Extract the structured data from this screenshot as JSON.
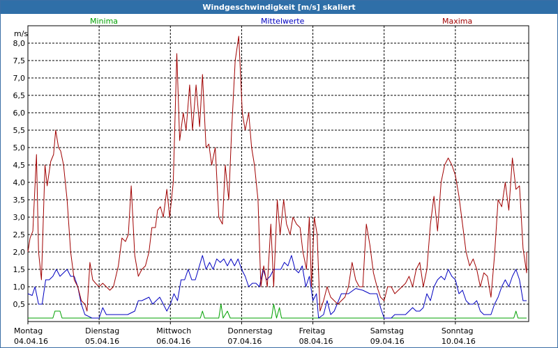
{
  "chart_data": {
    "type": "line",
    "title": "Windgeschwindigkeit [m/s] skaliert",
    "ylabel": "m/s",
    "ylim": [
      0,
      8.5
    ],
    "yticks": [
      "0,5",
      "1,0",
      "1,5",
      "2,0",
      "2,5",
      "3,0",
      "3,5",
      "4,0",
      "4,5",
      "5,0",
      "5,5",
      "6,0",
      "6,5",
      "7,0",
      "7,5",
      "8,0"
    ],
    "yvalues": [
      0.5,
      1.0,
      1.5,
      2.0,
      2.5,
      3.0,
      3.5,
      4.0,
      4.5,
      5.0,
      5.5,
      6.0,
      6.5,
      7.0,
      7.5,
      8.0
    ],
    "xlim": [
      0,
      7
    ],
    "days": [
      {
        "name": "Montag",
        "date": "04.04.16"
      },
      {
        "name": "Dienstag",
        "date": "05.04.16"
      },
      {
        "name": "Mittwoch",
        "date": "06.04.16"
      },
      {
        "name": "Donnerstag",
        "date": "07.04.16"
      },
      {
        "name": "Freitag",
        "date": "08.04.16"
      },
      {
        "name": "Samstag",
        "date": "09.04.16"
      },
      {
        "name": "Sonntag",
        "date": "10.04.16"
      }
    ],
    "legend_placement": "top",
    "grid": true,
    "series": [
      {
        "name": "Minima",
        "color": "#00a000",
        "points": [
          [
            0,
            0.1
          ],
          [
            0.35,
            0.1
          ],
          [
            0.38,
            0.3
          ],
          [
            0.45,
            0.3
          ],
          [
            0.48,
            0.1
          ],
          [
            2.42,
            0.1
          ],
          [
            2.45,
            0.3
          ],
          [
            2.48,
            0.1
          ],
          [
            2.68,
            0.1
          ],
          [
            2.71,
            0.5
          ],
          [
            2.74,
            0.1
          ],
          [
            2.8,
            0.3
          ],
          [
            2.84,
            0.1
          ],
          [
            3.42,
            0.1
          ],
          [
            3.45,
            0.5
          ],
          [
            3.49,
            0.1
          ],
          [
            3.53,
            0.4
          ],
          [
            3.56,
            0.1
          ],
          [
            6.82,
            0.1
          ],
          [
            6.85,
            0.3
          ],
          [
            6.88,
            0.1
          ],
          [
            7,
            0.1
          ]
        ]
      },
      {
        "name": "Mittelwerte",
        "color": "#0000c0",
        "points": [
          [
            0,
            0.8
          ],
          [
            0.06,
            0.75
          ],
          [
            0.1,
            1.0
          ],
          [
            0.15,
            0.5
          ],
          [
            0.2,
            0.5
          ],
          [
            0.25,
            1.2
          ],
          [
            0.3,
            1.2
          ],
          [
            0.35,
            1.3
          ],
          [
            0.4,
            1.5
          ],
          [
            0.45,
            1.3
          ],
          [
            0.5,
            1.4
          ],
          [
            0.55,
            1.5
          ],
          [
            0.6,
            1.3
          ],
          [
            0.65,
            1.3
          ],
          [
            0.7,
            1.0
          ],
          [
            0.75,
            0.5
          ],
          [
            0.8,
            0.2
          ],
          [
            0.9,
            0.1
          ],
          [
            1.0,
            0.1
          ],
          [
            1.05,
            0.4
          ],
          [
            1.1,
            0.2
          ],
          [
            1.2,
            0.2
          ],
          [
            1.3,
            0.2
          ],
          [
            1.4,
            0.2
          ],
          [
            1.5,
            0.3
          ],
          [
            1.55,
            0.6
          ],
          [
            1.6,
            0.6
          ],
          [
            1.7,
            0.7
          ],
          [
            1.75,
            0.5
          ],
          [
            1.8,
            0.6
          ],
          [
            1.85,
            0.7
          ],
          [
            1.9,
            0.5
          ],
          [
            1.95,
            0.3
          ],
          [
            2.0,
            0.5
          ],
          [
            2.05,
            0.8
          ],
          [
            2.1,
            0.6
          ],
          [
            2.15,
            1.2
          ],
          [
            2.2,
            1.2
          ],
          [
            2.25,
            1.5
          ],
          [
            2.3,
            1.2
          ],
          [
            2.35,
            1.2
          ],
          [
            2.45,
            1.9
          ],
          [
            2.5,
            1.5
          ],
          [
            2.55,
            1.7
          ],
          [
            2.6,
            1.5
          ],
          [
            2.65,
            1.8
          ],
          [
            2.7,
            1.7
          ],
          [
            2.75,
            1.8
          ],
          [
            2.8,
            1.6
          ],
          [
            2.85,
            1.8
          ],
          [
            2.9,
            1.6
          ],
          [
            2.95,
            1.8
          ],
          [
            3.0,
            1.5
          ],
          [
            3.05,
            1.3
          ],
          [
            3.1,
            1.0
          ],
          [
            3.15,
            1.1
          ],
          [
            3.2,
            1.1
          ],
          [
            3.25,
            1.0
          ],
          [
            3.3,
            1.5
          ],
          [
            3.35,
            1.2
          ],
          [
            3.4,
            1.3
          ],
          [
            3.45,
            1.5
          ],
          [
            3.5,
            1.5
          ],
          [
            3.55,
            1.5
          ],
          [
            3.6,
            1.7
          ],
          [
            3.65,
            1.6
          ],
          [
            3.7,
            1.9
          ],
          [
            3.75,
            1.5
          ],
          [
            3.8,
            1.4
          ],
          [
            3.85,
            1.6
          ],
          [
            3.9,
            1.0
          ],
          [
            3.95,
            1.3
          ],
          [
            4.0,
            0.6
          ],
          [
            4.05,
            0.8
          ],
          [
            4.08,
            0.1
          ],
          [
            4.15,
            0.2
          ],
          [
            4.2,
            0.6
          ],
          [
            4.25,
            0.2
          ],
          [
            4.3,
            0.3
          ],
          [
            4.4,
            0.8
          ],
          [
            4.5,
            0.8
          ],
          [
            4.6,
            0.95
          ],
          [
            4.7,
            0.9
          ],
          [
            4.8,
            0.8
          ],
          [
            4.9,
            0.8
          ],
          [
            4.95,
            0.4
          ],
          [
            5.0,
            0.1
          ],
          [
            5.1,
            0.1
          ],
          [
            5.15,
            0.2
          ],
          [
            5.2,
            0.2
          ],
          [
            5.3,
            0.2
          ],
          [
            5.4,
            0.4
          ],
          [
            5.45,
            0.3
          ],
          [
            5.5,
            0.3
          ],
          [
            5.55,
            0.4
          ],
          [
            5.6,
            0.8
          ],
          [
            5.65,
            0.6
          ],
          [
            5.7,
            1.0
          ],
          [
            5.75,
            1.2
          ],
          [
            5.8,
            1.3
          ],
          [
            5.85,
            1.2
          ],
          [
            5.9,
            1.5
          ],
          [
            5.95,
            1.3
          ],
          [
            6.0,
            1.2
          ],
          [
            6.05,
            0.8
          ],
          [
            6.1,
            0.9
          ],
          [
            6.15,
            0.6
          ],
          [
            6.2,
            0.5
          ],
          [
            6.25,
            0.5
          ],
          [
            6.3,
            0.6
          ],
          [
            6.35,
            0.3
          ],
          [
            6.4,
            0.2
          ],
          [
            6.5,
            0.2
          ],
          [
            6.55,
            0.5
          ],
          [
            6.6,
            0.7
          ],
          [
            6.65,
            1.0
          ],
          [
            6.7,
            1.2
          ],
          [
            6.75,
            1.0
          ],
          [
            6.8,
            1.3
          ],
          [
            6.85,
            1.5
          ],
          [
            6.9,
            1.2
          ],
          [
            6.95,
            0.6
          ],
          [
            7.0,
            0.6
          ]
        ]
      },
      {
        "name": "Maxima",
        "color": "#a00000",
        "points": [
          [
            0,
            2.0
          ],
          [
            0.03,
            2.4
          ],
          [
            0.07,
            2.6
          ],
          [
            0.12,
            4.8
          ],
          [
            0.15,
            2.0
          ],
          [
            0.19,
            1.2
          ],
          [
            0.24,
            4.5
          ],
          [
            0.27,
            3.9
          ],
          [
            0.32,
            4.6
          ],
          [
            0.36,
            4.8
          ],
          [
            0.39,
            5.5
          ],
          [
            0.43,
            5.0
          ],
          [
            0.46,
            4.9
          ],
          [
            0.5,
            4.5
          ],
          [
            0.55,
            3.5
          ],
          [
            0.6,
            2.0
          ],
          [
            0.65,
            1.2
          ],
          [
            0.7,
            1.0
          ],
          [
            0.75,
            0.6
          ],
          [
            0.8,
            0.5
          ],
          [
            0.83,
            0.3
          ],
          [
            0.87,
            1.7
          ],
          [
            0.91,
            1.2
          ],
          [
            0.95,
            1.1
          ],
          [
            1.0,
            1.0
          ],
          [
            1.05,
            1.1
          ],
          [
            1.1,
            1.0
          ],
          [
            1.15,
            0.9
          ],
          [
            1.2,
            1.0
          ],
          [
            1.27,
            1.6
          ],
          [
            1.32,
            2.4
          ],
          [
            1.37,
            2.3
          ],
          [
            1.41,
            2.5
          ],
          [
            1.45,
            3.9
          ],
          [
            1.5,
            1.9
          ],
          [
            1.55,
            1.3
          ],
          [
            1.6,
            1.5
          ],
          [
            1.65,
            1.6
          ],
          [
            1.7,
            2.0
          ],
          [
            1.74,
            2.7
          ],
          [
            1.79,
            2.7
          ],
          [
            1.82,
            3.2
          ],
          [
            1.86,
            3.3
          ],
          [
            1.9,
            3.0
          ],
          [
            1.95,
            3.8
          ],
          [
            1.99,
            3.0
          ],
          [
            2.04,
            4.0
          ],
          [
            2.09,
            7.7
          ],
          [
            2.13,
            5.2
          ],
          [
            2.18,
            6.0
          ],
          [
            2.22,
            5.5
          ],
          [
            2.27,
            6.8
          ],
          [
            2.31,
            5.5
          ],
          [
            2.36,
            6.8
          ],
          [
            2.41,
            5.6
          ],
          [
            2.45,
            7.1
          ],
          [
            2.5,
            5.0
          ],
          [
            2.54,
            5.1
          ],
          [
            2.58,
            4.5
          ],
          [
            2.63,
            5.0
          ],
          [
            2.68,
            3.0
          ],
          [
            2.73,
            2.8
          ],
          [
            2.77,
            4.5
          ],
          [
            2.82,
            3.5
          ],
          [
            2.86,
            5.5
          ],
          [
            2.91,
            7.5
          ],
          [
            2.96,
            8.2
          ],
          [
            3.01,
            6.0
          ],
          [
            3.05,
            5.5
          ],
          [
            3.1,
            6.0
          ],
          [
            3.14,
            5.0
          ],
          [
            3.18,
            4.5
          ],
          [
            3.23,
            3.5
          ],
          [
            3.27,
            1.0
          ],
          [
            3.31,
            1.6
          ],
          [
            3.36,
            1.0
          ],
          [
            3.41,
            2.8
          ],
          [
            3.45,
            1.0
          ],
          [
            3.5,
            3.5
          ],
          [
            3.54,
            2.5
          ],
          [
            3.59,
            3.5
          ],
          [
            3.63,
            2.8
          ],
          [
            3.68,
            2.5
          ],
          [
            3.72,
            3.0
          ],
          [
            3.77,
            2.8
          ],
          [
            3.82,
            2.7
          ],
          [
            3.86,
            2.0
          ],
          [
            3.91,
            1.5
          ],
          [
            3.95,
            3.0
          ],
          [
            3.98,
            1.0
          ],
          [
            4.02,
            3.0
          ],
          [
            4.06,
            2.5
          ],
          [
            4.1,
            0.3
          ],
          [
            4.15,
            0.6
          ],
          [
            4.2,
            1.0
          ],
          [
            4.25,
            0.7
          ],
          [
            4.3,
            0.6
          ],
          [
            4.35,
            0.5
          ],
          [
            4.4,
            0.6
          ],
          [
            4.45,
            0.7
          ],
          [
            4.5,
            1.0
          ],
          [
            4.55,
            1.7
          ],
          [
            4.6,
            1.2
          ],
          [
            4.65,
            1.0
          ],
          [
            4.7,
            1.0
          ],
          [
            4.75,
            2.8
          ],
          [
            4.8,
            2.2
          ],
          [
            4.85,
            1.4
          ],
          [
            4.9,
            1.0
          ],
          [
            4.95,
            0.7
          ],
          [
            5.0,
            0.6
          ],
          [
            5.05,
            1.0
          ],
          [
            5.1,
            1.0
          ],
          [
            5.15,
            0.8
          ],
          [
            5.2,
            0.9
          ],
          [
            5.25,
            1.0
          ],
          [
            5.3,
            1.1
          ],
          [
            5.35,
            1.3
          ],
          [
            5.4,
            1.0
          ],
          [
            5.45,
            1.5
          ],
          [
            5.5,
            1.7
          ],
          [
            5.55,
            1.0
          ],
          [
            5.6,
            1.5
          ],
          [
            5.65,
            2.8
          ],
          [
            5.7,
            3.6
          ],
          [
            5.75,
            2.6
          ],
          [
            5.8,
            4.0
          ],
          [
            5.85,
            4.5
          ],
          [
            5.9,
            4.7
          ],
          [
            5.95,
            4.5
          ],
          [
            6.0,
            4.2
          ],
          [
            6.05,
            3.6
          ],
          [
            6.1,
            2.8
          ],
          [
            6.15,
            2.0
          ],
          [
            6.2,
            1.6
          ],
          [
            6.25,
            1.8
          ],
          [
            6.3,
            1.5
          ],
          [
            6.35,
            1.0
          ],
          [
            6.4,
            1.4
          ],
          [
            6.45,
            1.3
          ],
          [
            6.5,
            0.7
          ],
          [
            6.55,
            1.9
          ],
          [
            6.6,
            3.5
          ],
          [
            6.65,
            3.3
          ],
          [
            6.7,
            4.0
          ],
          [
            6.75,
            3.2
          ],
          [
            6.8,
            4.7
          ],
          [
            6.85,
            3.8
          ],
          [
            6.9,
            3.9
          ],
          [
            6.95,
            2.1
          ],
          [
            7.0,
            1.4
          ],
          [
            7.0,
            2.0
          ]
        ]
      }
    ]
  }
}
